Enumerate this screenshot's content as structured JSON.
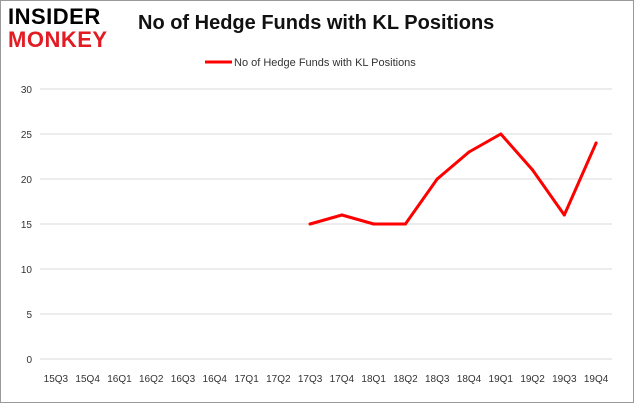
{
  "logo": {
    "line1": "INSIDER",
    "line2": "MONKEY"
  },
  "chart_data": {
    "type": "line",
    "title": "No of Hedge Funds with KL Positions",
    "categories": [
      "15Q3",
      "15Q4",
      "16Q1",
      "16Q2",
      "16Q3",
      "16Q4",
      "17Q1",
      "17Q2",
      "17Q3",
      "17Q4",
      "18Q1",
      "18Q2",
      "18Q3",
      "18Q4",
      "19Q1",
      "19Q2",
      "19Q3",
      "19Q4"
    ],
    "series": [
      {
        "name": "No of Hedge Funds with KL Positions",
        "color": "#ff0000",
        "values": [
          null,
          null,
          null,
          null,
          null,
          null,
          null,
          null,
          15,
          16,
          15,
          15,
          20,
          23,
          25,
          21,
          16,
          24
        ]
      }
    ],
    "ylim": [
      0,
      30
    ],
    "yticks": [
      0,
      5,
      10,
      15,
      20,
      25,
      30
    ],
    "grid": true,
    "legend": "top-center"
  }
}
